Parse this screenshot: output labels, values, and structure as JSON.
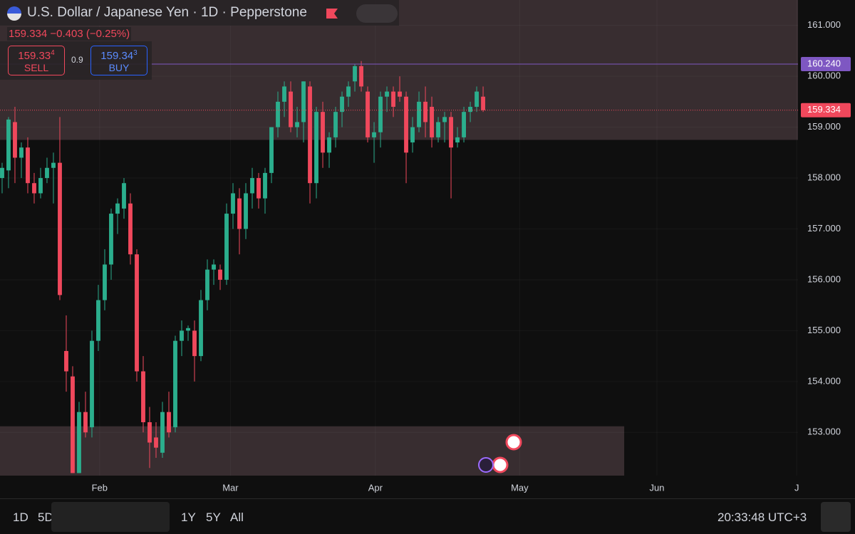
{
  "header": {
    "symbol": "U.S. Dollar / Japanese Yen · 1D · Pepperstone",
    "last": "159.334",
    "change": "−0.403 (−0.25%)",
    "sell_price": "159.33",
    "sell_sup": "4",
    "sell": "SELL",
    "spread": "0.9",
    "buy_price": "159.34",
    "buy_sup": "3",
    "buy": "BUY"
  },
  "toolbar": {
    "ranges": [
      "1D",
      "5D",
      "1Y",
      "5Y",
      "All"
    ],
    "clock": "20:33:48 UTC+3"
  },
  "chart_data": {
    "type": "candlestick",
    "up_color": "#2bae8d",
    "down_color": "#f0485c",
    "x": [
      0,
      1,
      2,
      3,
      4,
      5,
      6,
      7,
      8,
      9,
      10,
      11,
      12,
      13,
      14,
      15,
      16,
      17,
      18,
      19,
      20,
      21,
      22,
      23,
      24,
      25,
      26,
      27,
      28,
      29,
      30,
      31,
      32,
      33,
      34,
      35,
      36,
      37,
      38,
      39,
      40,
      41,
      42,
      43,
      44,
      45,
      46,
      47,
      48,
      49,
      50,
      51,
      52,
      53,
      54,
      55,
      56,
      57,
      58,
      59,
      60,
      61,
      62,
      63,
      64,
      65,
      66,
      67,
      68,
      69,
      70,
      71,
      72,
      73,
      74,
      75
    ],
    "open": [
      158.0,
      158.15,
      159.1,
      158.4,
      158.6,
      157.9,
      157.7,
      158.0,
      158.2,
      158.3,
      154.6,
      154.1,
      152.2,
      153.4,
      153.1,
      154.8,
      155.6,
      156.3,
      157.3,
      157.4,
      157.5,
      156.5,
      154.2,
      153.2,
      152.9,
      152.6,
      153.4,
      153.1,
      154.8,
      155.0,
      155.0,
      154.5,
      155.6,
      156.2,
      156.2,
      156.0,
      157.3,
      157.6,
      157.0,
      157.7,
      158.0,
      157.6,
      158.1,
      159.0,
      159.5,
      159.7,
      159.0,
      159.1,
      159.8,
      157.9,
      159.3,
      158.5,
      158.8,
      159.3,
      159.6,
      159.9,
      160.2,
      159.7,
      158.8,
      158.9,
      159.6,
      159.7,
      159.7,
      159.6,
      158.7,
      159.0,
      159.5,
      159.4,
      158.8,
      159.1,
      159.2,
      158.7,
      158.8,
      159.3,
      159.4,
      159.6
    ],
    "high": [
      158.3,
      159.2,
      159.4,
      158.7,
      158.8,
      158.1,
      158.2,
      158.4,
      158.5,
      159.2,
      155.3,
      154.3,
      153.6,
      153.8,
      155.0,
      155.9,
      156.6,
      157.4,
      157.6,
      158.0,
      157.7,
      156.6,
      154.5,
      153.5,
      153.2,
      153.6,
      153.8,
      154.9,
      155.2,
      155.1,
      155.2,
      155.8,
      156.4,
      156.4,
      156.3,
      157.5,
      157.9,
      157.8,
      157.9,
      158.2,
      158.1,
      158.2,
      159.0,
      159.7,
      159.9,
      159.9,
      159.4,
      159.9,
      159.9,
      159.4,
      159.5,
      158.9,
      159.4,
      159.7,
      159.9,
      160.24,
      160.3,
      159.8,
      159.1,
      159.7,
      159.8,
      159.8,
      160.0,
      159.7,
      159.2,
      159.7,
      159.8,
      159.6,
      159.2,
      159.3,
      159.3,
      159.0,
      159.4,
      159.5,
      159.8,
      159.8
    ],
    "low": [
      157.7,
      157.8,
      157.9,
      158.0,
      157.7,
      157.5,
      157.6,
      157.9,
      157.5,
      155.6,
      153.8,
      152.2,
      152.2,
      152.9,
      152.9,
      154.6,
      155.4,
      156.0,
      156.9,
      157.2,
      156.3,
      154.0,
      153.0,
      152.3,
      152.5,
      152.5,
      152.9,
      153.0,
      154.5,
      154.8,
      154.0,
      154.4,
      155.4,
      155.9,
      155.8,
      155.9,
      157.0,
      156.5,
      156.8,
      157.4,
      157.4,
      157.3,
      157.9,
      158.8,
      159.2,
      158.9,
      158.8,
      158.7,
      157.5,
      157.6,
      158.2,
      158.2,
      158.6,
      159.0,
      159.4,
      159.7,
      159.7,
      158.7,
      158.3,
      158.6,
      159.3,
      159.2,
      159.5,
      157.9,
      158.5,
      158.9,
      158.8,
      158.6,
      158.7,
      158.7,
      157.6,
      158.6,
      158.7,
      159.1,
      159.3,
      159.3
    ],
    "close": [
      158.2,
      159.15,
      158.4,
      158.6,
      157.9,
      157.7,
      158.0,
      158.2,
      158.3,
      155.7,
      154.2,
      152.2,
      153.4,
      153.0,
      154.8,
      155.6,
      156.3,
      157.3,
      157.5,
      157.9,
      156.5,
      154.2,
      153.2,
      152.8,
      152.7,
      153.4,
      153.0,
      154.8,
      155.0,
      155.05,
      154.5,
      155.6,
      156.2,
      156.3,
      156.0,
      157.3,
      157.7,
      157.0,
      157.7,
      158.0,
      157.6,
      158.1,
      159.0,
      159.5,
      159.8,
      159.0,
      159.1,
      159.9,
      157.9,
      159.3,
      158.5,
      158.8,
      159.3,
      159.6,
      159.8,
      160.2,
      159.8,
      158.8,
      158.9,
      159.6,
      159.7,
      159.4,
      159.6,
      158.5,
      159.0,
      159.5,
      159.1,
      158.8,
      159.1,
      159.2,
      158.6,
      158.8,
      159.3,
      159.4,
      159.7,
      159.334
    ],
    "xlim": [
      -0.33,
      124.1
    ],
    "xticks": [
      {
        "value": 15.2,
        "label": "Feb"
      },
      {
        "value": 35.6,
        "label": "Mar"
      },
      {
        "value": 58.2,
        "label": "Apr"
      },
      {
        "value": 80.7,
        "label": "May"
      },
      {
        "value": 102.1,
        "label": "Jun"
      },
      {
        "value": 123.9,
        "label": "J"
      }
    ],
    "ylim": [
      152.15,
      161.5
    ],
    "yticks": [
      {
        "value": 153,
        "label": "153.000"
      },
      {
        "value": 154,
        "label": "154.000"
      },
      {
        "value": 155,
        "label": "155.000"
      },
      {
        "value": 156,
        "label": "156.000"
      },
      {
        "value": 157,
        "label": "157.000"
      },
      {
        "value": 158,
        "label": "158.000"
      },
      {
        "value": 159,
        "label": "159.000"
      },
      {
        "value": 160,
        "label": "160.000"
      },
      {
        "value": 161,
        "label": "161.000"
      }
    ],
    "grid": true,
    "level": {
      "value": 160.24,
      "label": "160.240",
      "color": "#7e57c2"
    },
    "price_line": {
      "value": 159.334,
      "color": "#f0485c"
    },
    "zones": [
      {
        "from": 158.75,
        "to": 161.5,
        "x_to": 124.1
      },
      {
        "from": 152.15,
        "to": 153.12,
        "x_to": 97
      }
    ]
  }
}
